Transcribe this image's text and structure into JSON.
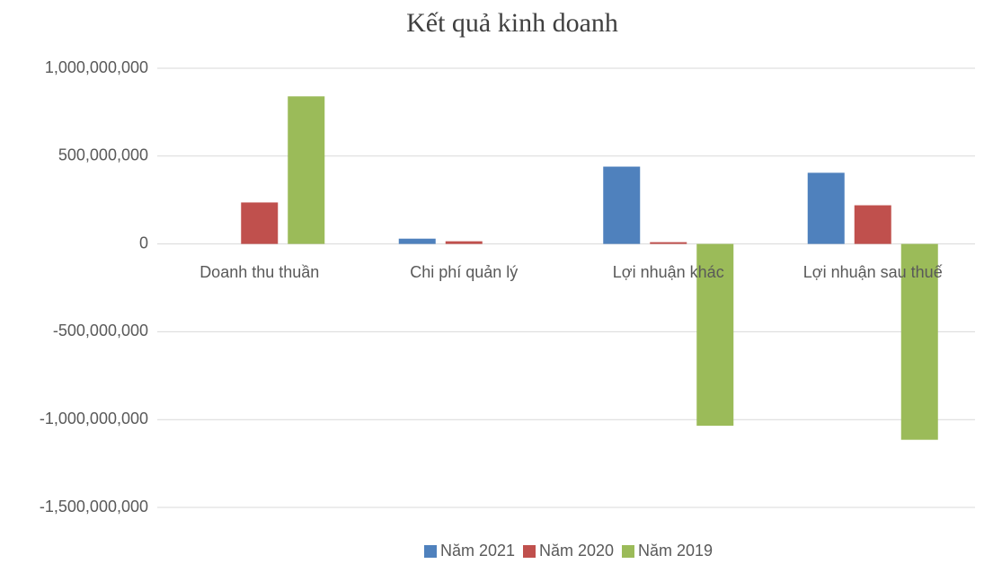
{
  "chart_data": {
    "type": "bar",
    "title": "Kết quả kinh doanh",
    "categories": [
      "Doanh thu thuần",
      "Chi phí quản lý",
      "Lợi nhuận khác",
      "Lợi nhuận sau thuế"
    ],
    "series": [
      {
        "name": "Năm 2021",
        "color": "#4f81bd",
        "values": [
          0,
          30000000,
          440000000,
          405000000
        ]
      },
      {
        "name": "Năm 2020",
        "color": "#c0504d",
        "values": [
          236000000,
          15000000,
          10000000,
          220000000
        ]
      },
      {
        "name": "Năm 2019",
        "color": "#9bbb59",
        "values": [
          840000000,
          0,
          -1035000000,
          -1115000000
        ]
      }
    ],
    "ylim": [
      -1500000000,
      1000000000
    ],
    "yticks": [
      {
        "value": -1500000000,
        "label": "-1,500,000,000"
      },
      {
        "value": -1000000000,
        "label": "-1,000,000,000"
      },
      {
        "value": -500000000,
        "label": "-500,000,000"
      },
      0,
      {
        "value": 500000000,
        "label": "500,000,000"
      },
      {
        "value": 1000000000,
        "label": "1,000,000,000"
      }
    ],
    "grid": true,
    "legend": "bottom"
  }
}
